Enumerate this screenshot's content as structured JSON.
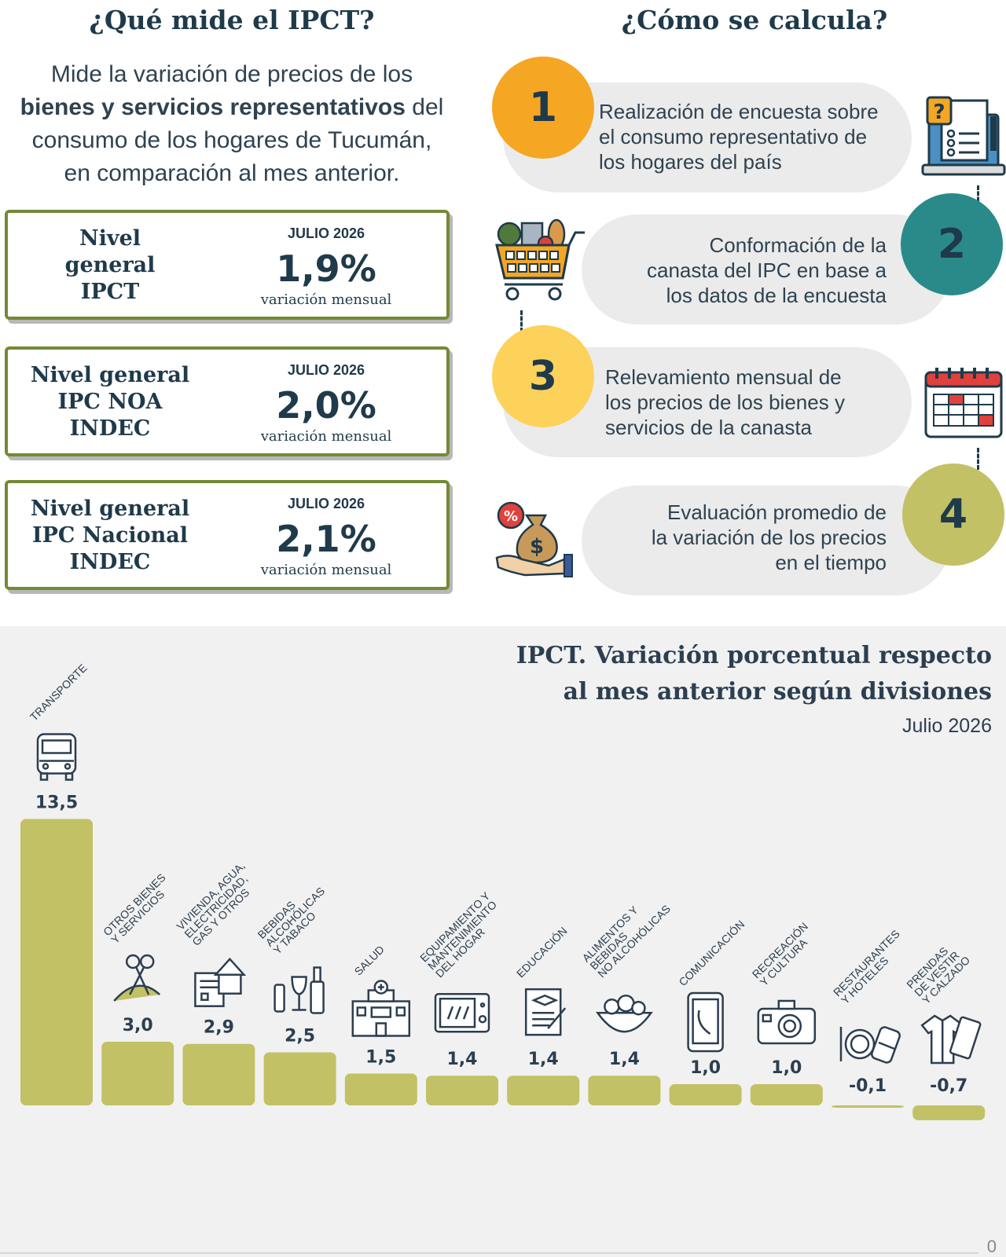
{
  "left": {
    "title": "¿Qué mide el IPCT?",
    "intro_line1": "Mide la variación de precios de los",
    "intro_bold": "bienes y servicios representativos",
    "intro_after_bold": " del",
    "intro_line3": "consumo de los hogares de Tucumán,",
    "intro_line4": "en comparación al mes anterior."
  },
  "cards": [
    {
      "label_lines": [
        "Nivel",
        "general",
        "IPCT"
      ],
      "month": "JULIO 2026",
      "value": "1,9%",
      "note": "variación mensual"
    },
    {
      "label_lines": [
        "Nivel general",
        "IPC NOA",
        "INDEC"
      ],
      "month": "JULIO 2026",
      "value": "2,0%",
      "note": "variación mensual"
    },
    {
      "label_lines": [
        "Nivel general",
        "IPC Nacional",
        "INDEC"
      ],
      "month": "JULIO 2026",
      "value": "2,1%",
      "note": "variación mensual"
    }
  ],
  "right": {
    "title": "¿Cómo se calcula?",
    "steps": [
      {
        "number": "1",
        "lines": [
          "Realización de encuesta sobre",
          "el consumo representativo de",
          "los hogares del país"
        ],
        "color": "#f5a623",
        "icon": "survey-laptop-icon"
      },
      {
        "number": "2",
        "lines": [
          "Conformación de la",
          "canasta del IPC en base a",
          "los datos de la encuesta"
        ],
        "color": "#2a8a8a",
        "icon": "shopping-cart-icon"
      },
      {
        "number": "3",
        "lines": [
          "Relevamiento mensual de",
          "los precios de los bienes y",
          "servicios de la canasta"
        ],
        "color": "#fcd25a",
        "icon": "calendar-icon"
      },
      {
        "number": "4",
        "lines": [
          "Evaluación promedio de",
          "la variación de los precios",
          "en el tiempo"
        ],
        "color": "#c2c165",
        "icon": "money-bag-hand-icon"
      }
    ]
  },
  "chart": {
    "title_line1": "IPCT. Variación porcentual respecto",
    "title_line2": "al mes anterior según divisiones",
    "subtitle": "Julio 2026",
    "zero_label": "0"
  },
  "chart_data": {
    "type": "bar",
    "bar_color": "#c2c165",
    "categories": [
      "TRANSPORTE",
      "OTROS BIENES Y SERVICIOS",
      "VIVIENDA, AGUA, ELECTRICIDAD, GAS Y OTROS",
      "BEBIDAS ALCOHÓLICAS Y TABACO",
      "SALUD",
      "EQUIPAMIENTO Y MANTENIMIENTO DEL HOGAR",
      "EDUCACIÓN",
      "ALIMENTOS Y BEBIDAS NO ALCOHÓLICAS",
      "COMUNICACIÓN",
      "RECREACIÓN Y CULTURA",
      "RESTAURANTES Y HOTELES",
      "PRENDAS DE VESTIR Y CALZADO"
    ],
    "category_lines": [
      [
        "TRANSPORTE"
      ],
      [
        "OTROS BIENES",
        "Y SERVICIOS"
      ],
      [
        "VIVIENDA, AGUA,",
        "ELECTRICIDAD,",
        "GAS Y OTROS"
      ],
      [
        "BEBIDAS",
        "ALCOHÓLICAS",
        "Y TABACO"
      ],
      [
        "SALUD"
      ],
      [
        "EQUIPAMIENTO Y",
        "MANTENIMIENTO",
        "DEL HOGAR"
      ],
      [
        "EDUCACIÓN"
      ],
      [
        "ALIMENTOS Y",
        "BEBIDAS",
        "NO ALCOHÓLICAS"
      ],
      [
        "COMUNICACIÓN"
      ],
      [
        "RECREACIÓN",
        "Y CULTURA"
      ],
      [
        "RESTAURANTES",
        "Y HOTELES"
      ],
      [
        "PRENDAS",
        "DE VESTIR",
        "Y CALZADO"
      ]
    ],
    "values": [
      13.5,
      3.0,
      2.9,
      2.5,
      1.5,
      1.4,
      1.4,
      1.4,
      1.0,
      1.0,
      -0.1,
      -0.7
    ],
    "value_labels": [
      "13,5",
      "3,0",
      "2,9",
      "2,5",
      "1,5",
      "1,4",
      "1,4",
      "1,4",
      "1,0",
      "1,0",
      "-0,1",
      "-0,7"
    ],
    "icons": [
      "bus-icon",
      "scissors-ribbon-icon",
      "house-document-icon",
      "wine-bottle-icon",
      "hospital-icon",
      "microwave-icon",
      "diploma-icon",
      "food-bowl-icon",
      "phone-icon",
      "camera-icon",
      "dining-luggage-icon",
      "clothes-icon"
    ]
  }
}
